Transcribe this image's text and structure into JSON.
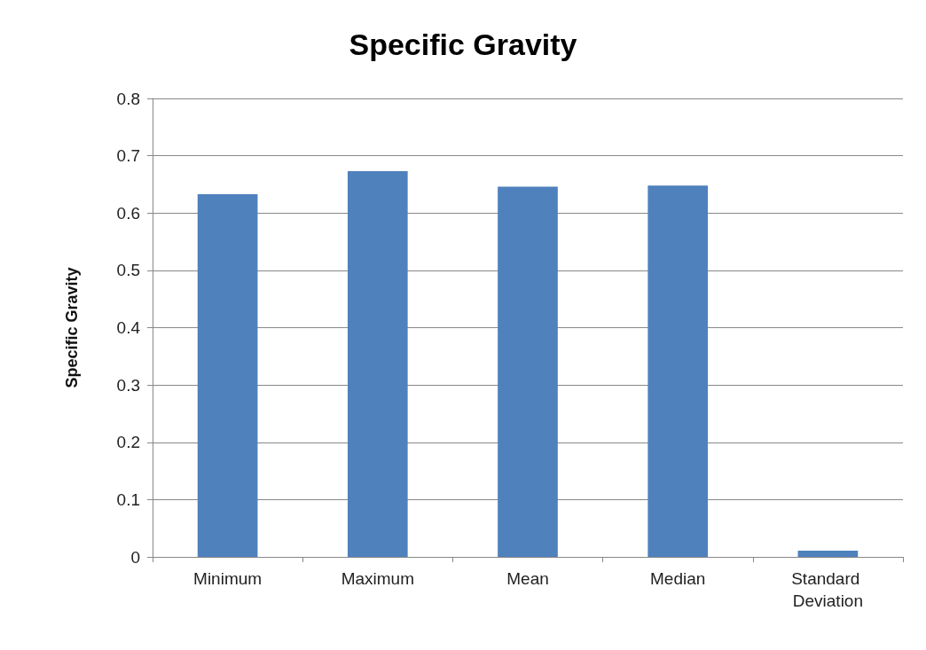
{
  "chart_data": {
    "type": "bar",
    "title": "Specific Gravity",
    "ylabel": "Specific Gravity",
    "categories": [
      "Minimum",
      "Maximum",
      "Mean",
      "Median",
      "Standard Deviation"
    ],
    "values": [
      0.633,
      0.673,
      0.646,
      0.648,
      0.011
    ],
    "color": "#4f81bd",
    "ylim": [
      0,
      0.8
    ],
    "yticks": [
      0,
      0.1,
      0.2,
      0.3,
      0.4,
      0.5,
      0.6,
      0.7,
      0.8
    ],
    "grid": "y"
  }
}
